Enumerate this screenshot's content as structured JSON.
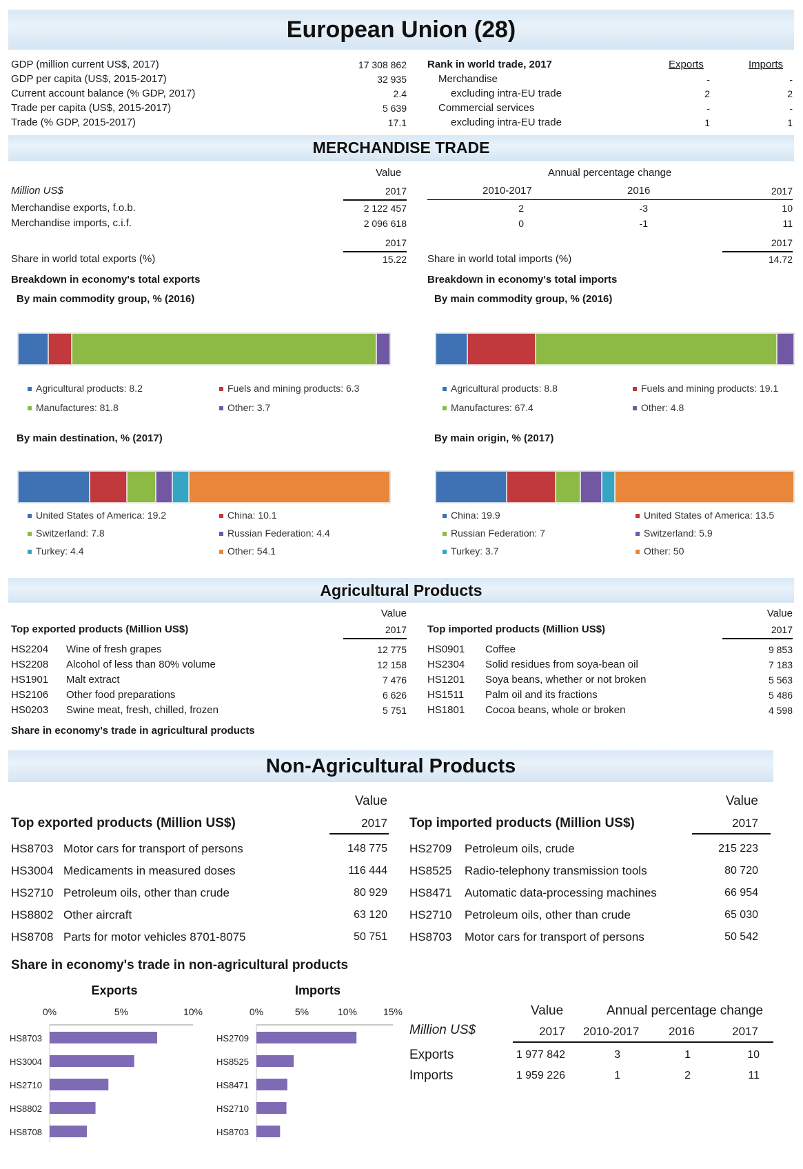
{
  "title": "European Union (28)",
  "summary": {
    "rows": [
      {
        "label": "GDP (million current US$, 2017)",
        "value": "17 308 862"
      },
      {
        "label": "GDP per capita (US$, 2015-2017)",
        "value": "32 935"
      },
      {
        "label": "Current account balance (% GDP, 2017)",
        "value": "2.4"
      },
      {
        "label": "Trade per capita (US$, 2015-2017)",
        "value": "5 639"
      },
      {
        "label": "Trade (% GDP, 2015-2017)",
        "value": "17.1"
      }
    ],
    "rank_title": "Rank in world trade, 2017",
    "rank_exports_header": "Exports",
    "rank_imports_header": "Imports",
    "rank_rows": [
      {
        "label": "Merchandise",
        "exports": "-",
        "imports": "-"
      },
      {
        "label": "excluding intra-EU trade",
        "exports": "2",
        "imports": "2"
      },
      {
        "label": "Commercial services",
        "exports": "-",
        "imports": "-"
      },
      {
        "label": "excluding intra-EU trade",
        "exports": "1",
        "imports": "1"
      }
    ]
  },
  "merch": {
    "title": "MERCHANDISE TRADE",
    "value_header": "Value",
    "apc_header": "Annual percentage change",
    "million_label": "Million US$",
    "year_2017": "2017",
    "period": "2010-2017",
    "year_2016": "2016",
    "exports_label": "Merchandise exports, f.o.b.",
    "imports_label": "Merchandise imports, c.i.f.",
    "exports": {
      "value": "2 122 457",
      "p1": "2",
      "p2": "-3",
      "p3": "10"
    },
    "imports": {
      "value": "2 096 618",
      "p1": "0",
      "p2": "-1",
      "p3": "11"
    },
    "share_exports_label": "Share in world total exports (%)",
    "share_exports_value": "15.22",
    "share_imports_label": "Share in world total imports (%)",
    "share_imports_value": "14.72",
    "breakdown_exports": "Breakdown in economy's total exports",
    "breakdown_imports": "Breakdown in economy's total imports",
    "by_commodity": "By main commodity group, % (2016)",
    "by_destination": "By main destination, % (2017)",
    "by_origin": "By main origin, % (2017)"
  },
  "chart_data": [
    {
      "type": "stacked-bar",
      "name": "exports by main commodity group",
      "segments": [
        {
          "label": "Agricultural products: 8.2",
          "value": 8.2,
          "color": "#3e72b4"
        },
        {
          "label": "Fuels and mining products: 6.3",
          "value": 6.3,
          "color": "#c1393c"
        },
        {
          "label": "Manufactures: 81.8",
          "value": 81.8,
          "color": "#8dba45"
        },
        {
          "label": "Other: 3.7",
          "value": 3.7,
          "color": "#7257a3"
        }
      ]
    },
    {
      "type": "stacked-bar",
      "name": "imports by main commodity group",
      "segments": [
        {
          "label": "Agricultural products: 8.8",
          "value": 8.8,
          "color": "#3e72b4"
        },
        {
          "label": "Fuels and mining products: 19.1",
          "value": 19.1,
          "color": "#c1393c"
        },
        {
          "label": "Manufactures: 67.4",
          "value": 67.4,
          "color": "#8dba45"
        },
        {
          "label": "Other: 4.8",
          "value": 4.8,
          "color": "#7257a3"
        }
      ]
    },
    {
      "type": "stacked-bar",
      "name": "exports by main destination",
      "segments": [
        {
          "label": "United States of America: 19.2",
          "value": 19.2,
          "color": "#3e72b4"
        },
        {
          "label": "China: 10.1",
          "value": 10.1,
          "color": "#c1393c"
        },
        {
          "label": "Switzerland: 7.8",
          "value": 7.8,
          "color": "#8dba45"
        },
        {
          "label": "Russian Federation: 4.4",
          "value": 4.4,
          "color": "#7257a3"
        },
        {
          "label": "Turkey: 4.4",
          "value": 4.4,
          "color": "#36a5c4"
        },
        {
          "label": "Other: 54.1",
          "value": 54.1,
          "color": "#e9863a"
        }
      ]
    },
    {
      "type": "stacked-bar",
      "name": "imports by main origin",
      "segments": [
        {
          "label": "China: 19.9",
          "value": 19.9,
          "color": "#3e72b4"
        },
        {
          "label": "United States of America: 13.5",
          "value": 13.5,
          "color": "#c1393c"
        },
        {
          "label": "Russian Federation: 7",
          "value": 7,
          "color": "#8dba45"
        },
        {
          "label": "Switzerland: 5.9",
          "value": 5.9,
          "color": "#7257a3"
        },
        {
          "label": "Turkey: 3.7",
          "value": 3.7,
          "color": "#36a5c4"
        },
        {
          "label": "Other: 50",
          "value": 50,
          "color": "#e9863a"
        }
      ]
    },
    {
      "type": "bar",
      "orientation": "horizontal",
      "title": "Exports",
      "categories": [
        "HS8703",
        "HS3004",
        "HS2710",
        "HS8802",
        "HS8708"
      ],
      "values": [
        7.5,
        5.9,
        4.1,
        3.2,
        2.6
      ],
      "xlim": [
        0,
        10
      ],
      "ticks": [
        "0%",
        "5%",
        "10%"
      ],
      "color": "#7f6bb5"
    },
    {
      "type": "bar",
      "orientation": "horizontal",
      "title": "Imports",
      "categories": [
        "HS2709",
        "HS8525",
        "HS8471",
        "HS2710",
        "HS8703"
      ],
      "values": [
        11.0,
        4.1,
        3.4,
        3.3,
        2.6
      ],
      "xlim": [
        0,
        15
      ],
      "ticks": [
        "0%",
        "5%",
        "10%",
        "15%"
      ],
      "color": "#7f6bb5"
    }
  ],
  "agri": {
    "title": "Agricultural Products",
    "value_header": "Value",
    "year": "2017",
    "top_exported_title": "Top exported products (Million US$)",
    "top_imported_title": "Top imported products (Million US$)",
    "exported": [
      {
        "code": "HS2204",
        "name": "Wine of fresh grapes",
        "value": "12 775"
      },
      {
        "code": "HS2208",
        "name": "Alcohol of less than 80% volume",
        "value": "12 158"
      },
      {
        "code": "HS1901",
        "name": "Malt extract",
        "value": "7 476"
      },
      {
        "code": "HS2106",
        "name": "Other food preparations",
        "value": "6 626"
      },
      {
        "code": "HS0203",
        "name": "Swine meat, fresh, chilled, frozen",
        "value": "5 751"
      }
    ],
    "imported": [
      {
        "code": "HS0901",
        "name": "Coffee",
        "value": "9 853"
      },
      {
        "code": "HS2304",
        "name": "Solid residues from soya-bean oil",
        "value": "7 183"
      },
      {
        "code": "HS1201",
        "name": "Soya beans, whether or not broken",
        "value": "5 563"
      },
      {
        "code": "HS1511",
        "name": "Palm oil and its fractions",
        "value": "5 486"
      },
      {
        "code": "HS1801",
        "name": "Cocoa beans, whole or broken",
        "value": "4 598"
      }
    ],
    "share_title": "Share in economy's trade in agricultural products"
  },
  "nonagri": {
    "title": "Non-Agricultural Products",
    "value_header": "Value",
    "year": "2017",
    "top_exported_title": "Top exported products (Million US$)",
    "top_imported_title": "Top imported products (Million US$)",
    "exported": [
      {
        "code": "HS8703",
        "name": "Motor cars for transport of persons",
        "value": "148 775"
      },
      {
        "code": "HS3004",
        "name": "Medicaments in measured doses",
        "value": "116 444"
      },
      {
        "code": "HS2710",
        "name": "Petroleum oils, other than crude",
        "value": "80 929"
      },
      {
        "code": "HS8802",
        "name": "Other aircraft",
        "value": "63 120"
      },
      {
        "code": "HS8708",
        "name": "Parts for motor vehicles 8701-8075",
        "value": "50 751"
      }
    ],
    "imported": [
      {
        "code": "HS2709",
        "name": "Petroleum oils, crude",
        "value": "215 223"
      },
      {
        "code": "HS8525",
        "name": "Radio-telephony transmission tools",
        "value": "80 720"
      },
      {
        "code": "HS8471",
        "name": "Automatic data-processing machines",
        "value": "66 954"
      },
      {
        "code": "HS2710",
        "name": "Petroleum oils, other than crude",
        "value": "65 030"
      },
      {
        "code": "HS8703",
        "name": "Motor cars for transport of persons",
        "value": "50 542"
      }
    ],
    "share_title": "Share in economy's trade in non-agricultural products",
    "table": {
      "value_header": "Value",
      "apc_header": "Annual percentage change",
      "million_label": "Million US$",
      "year_2017": "2017",
      "period": "2010-2017",
      "year_2016": "2016",
      "rows": [
        {
          "label": "Exports",
          "value": "1 977 842",
          "p1": "3",
          "p2": "1",
          "p3": "10"
        },
        {
          "label": "Imports",
          "value": "1 959 226",
          "p1": "1",
          "p2": "2",
          "p3": "11"
        }
      ]
    }
  }
}
